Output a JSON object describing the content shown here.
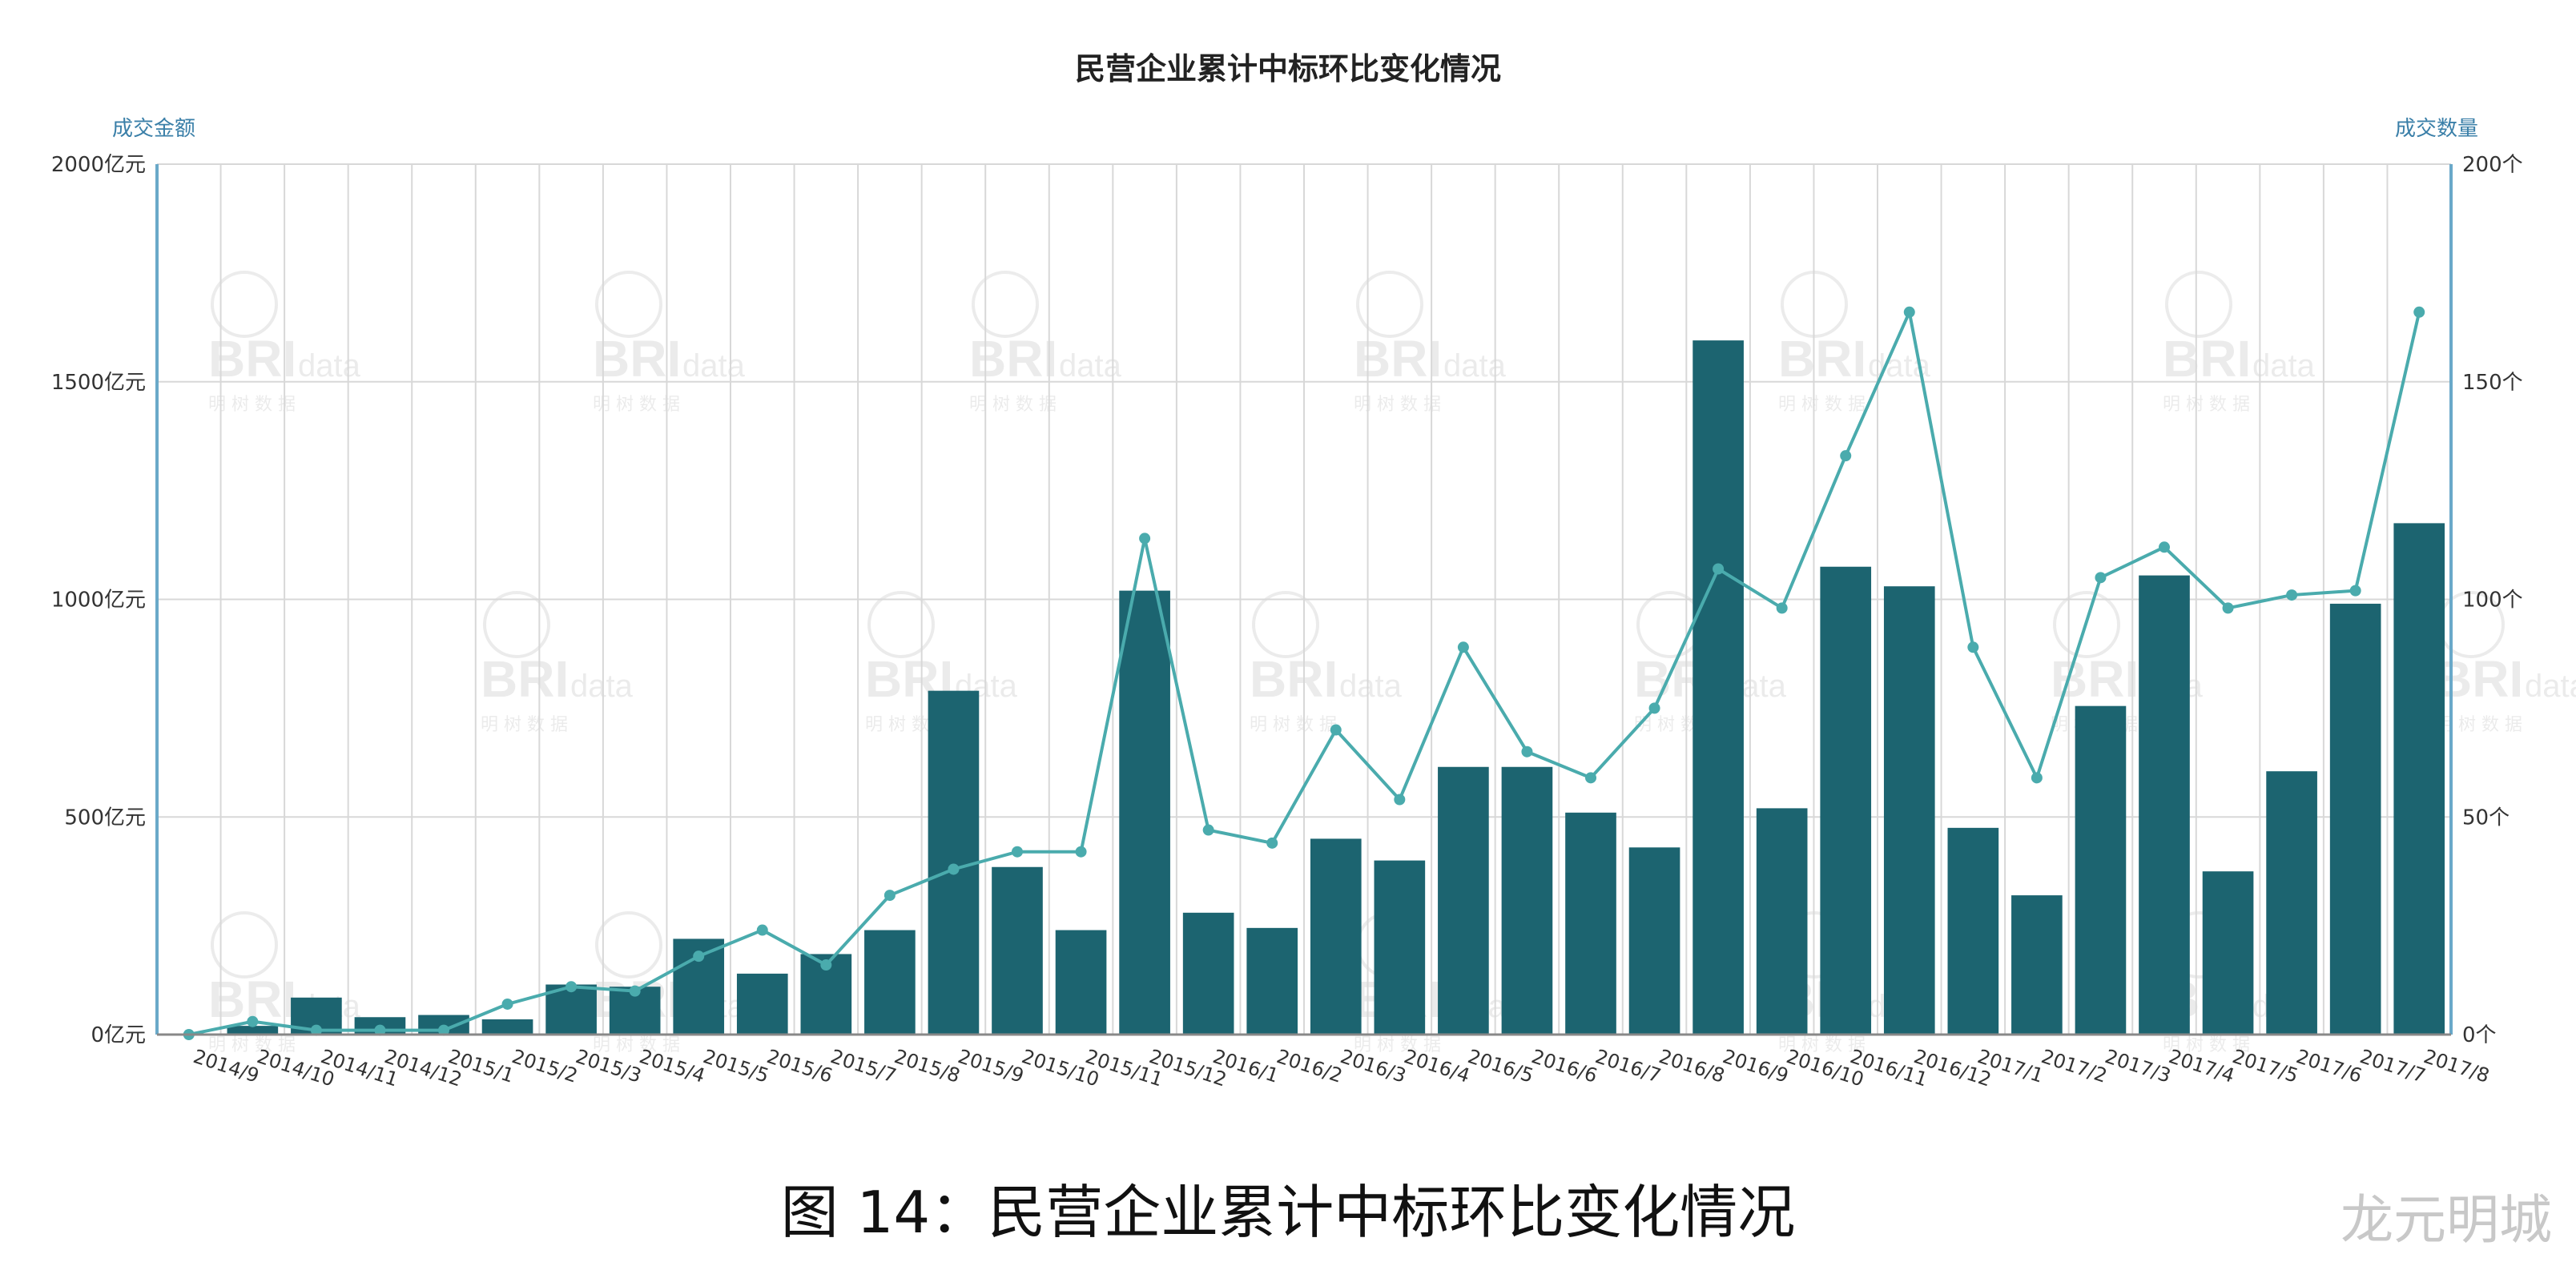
{
  "title": "民营企业累计中标环比变化情况",
  "left_axis_title": "成交金额",
  "right_axis_title": "成交数量",
  "caption": "图 14：民营企业累计中标环比变化情况",
  "credit": "龙元明城",
  "watermark": {
    "logo": "BRI",
    "logo_sub": "data",
    "logo_cn": "明 树 数 据"
  },
  "colors": {
    "bar": "#1c6470",
    "line": "#4aabad",
    "grid": "#d8d8d8",
    "axis": "#6aa9c9"
  },
  "chart_data": {
    "type": "bar",
    "categories": [
      "2014/9",
      "2014/10",
      "2014/11",
      "2014/12",
      "2015/1",
      "2015/2",
      "2015/3",
      "2015/4",
      "2015/5",
      "2015/6",
      "2015/7",
      "2015/8",
      "2015/9",
      "2015/10",
      "2015/11",
      "2015/12",
      "2016/1",
      "2016/2",
      "2016/3",
      "2016/4",
      "2016/5",
      "2016/6",
      "2016/7",
      "2016/8",
      "2016/9",
      "2016/10",
      "2016/11",
      "2016/12",
      "2017/1",
      "2017/2",
      "2017/3",
      "2017/4",
      "2017/5",
      "2017/6",
      "2017/7",
      "2017/8"
    ],
    "series": [
      {
        "name": "成交金额",
        "type": "bar",
        "axis": "left",
        "values": [
          0,
          20,
          85,
          40,
          45,
          35,
          115,
          110,
          220,
          140,
          185,
          240,
          790,
          385,
          240,
          1020,
          280,
          245,
          450,
          400,
          615,
          615,
          510,
          430,
          1595,
          520,
          1075,
          1030,
          475,
          320,
          755,
          1055,
          375,
          605,
          990,
          1175
        ]
      },
      {
        "name": "成交数量",
        "type": "line",
        "axis": "right",
        "values": [
          0,
          3,
          1,
          1,
          1,
          7,
          11,
          10,
          18,
          24,
          16,
          32,
          38,
          42,
          42,
          114,
          47,
          44,
          70,
          54,
          89,
          65,
          59,
          75,
          107,
          98,
          133,
          166,
          89,
          59,
          105,
          112,
          98,
          101,
          102,
          166
        ]
      }
    ],
    "y_left": {
      "min": 0,
      "max": 2000,
      "ticks": [
        "0亿元",
        "500亿元",
        "1000亿元",
        "1500亿元",
        "2000亿元"
      ]
    },
    "y_right": {
      "min": 0,
      "max": 200,
      "ticks": [
        "0个",
        "50个",
        "100个",
        "150个",
        "200个"
      ]
    },
    "grid": true
  }
}
